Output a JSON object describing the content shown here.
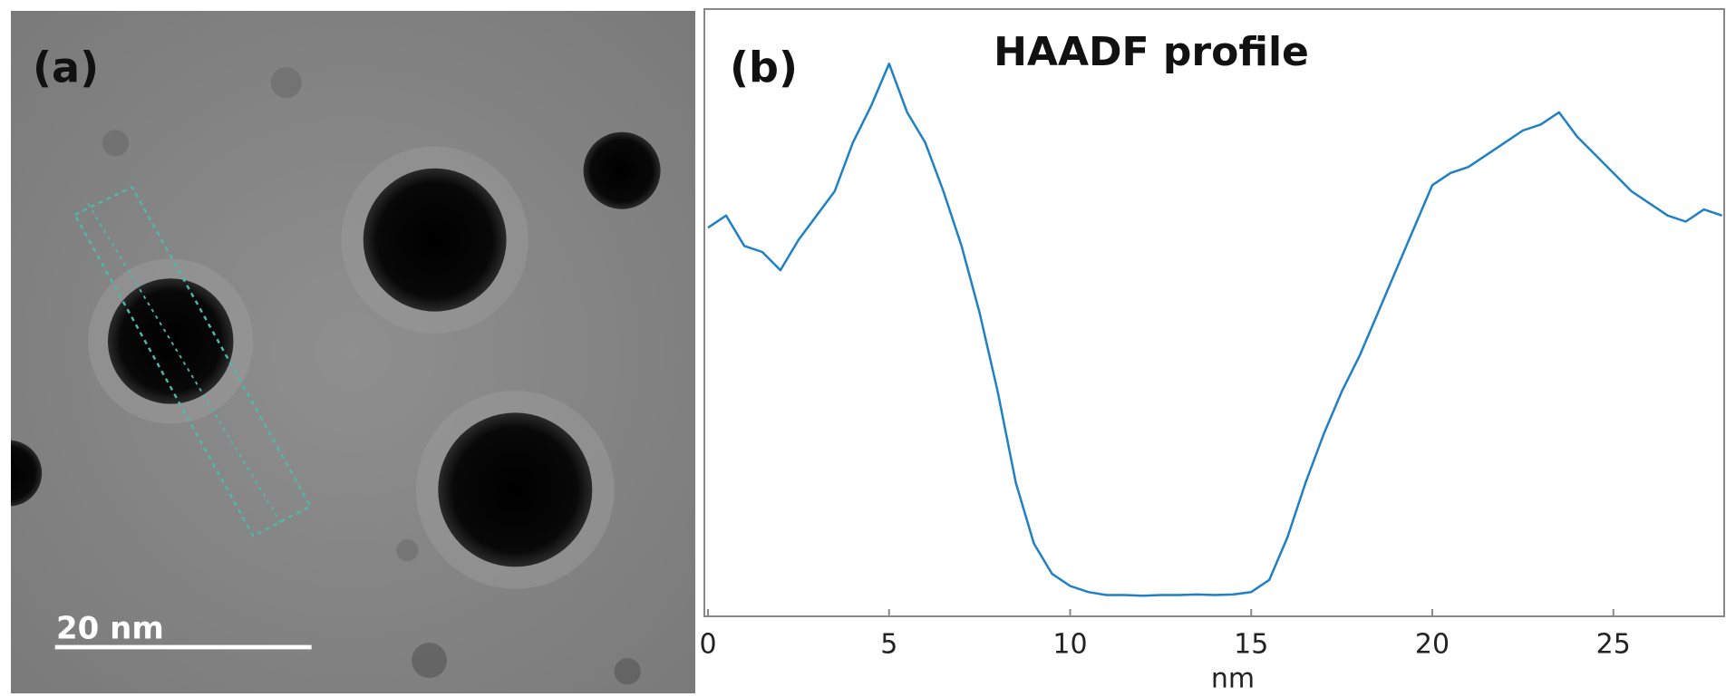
{
  "panel_a": {
    "label": "(a)",
    "scale_bar": "20 nm"
  },
  "chart_data": {
    "type": "line",
    "panel_label": "(b)",
    "title": "HAADF profile",
    "x_label": "nm",
    "x": [
      0,
      0.5,
      1,
      1.5,
      2,
      2.5,
      3,
      3.5,
      4,
      4.5,
      5,
      5.5,
      6,
      6.5,
      7,
      7.5,
      8,
      8.5,
      9,
      9.5,
      10,
      10.5,
      11,
      11.5,
      12,
      12.5,
      13,
      13.5,
      14,
      14.5,
      15,
      15.5,
      16,
      16.5,
      17,
      17.5,
      18,
      18.5,
      19,
      19.5,
      20,
      20.5,
      21,
      21.5,
      22,
      22.5,
      23,
      23.5,
      24,
      24.5,
      25,
      25.5,
      26,
      26.5,
      27,
      27.5,
      28
    ],
    "values": [
      64,
      66,
      61,
      60,
      57,
      62,
      66,
      70,
      78,
      84,
      91,
      83,
      78,
      70,
      61,
      50,
      37,
      22,
      12,
      7,
      5,
      4,
      3.5,
      3.5,
      3.4,
      3.5,
      3.5,
      3.6,
      3.5,
      3.6,
      4,
      6,
      13,
      22,
      30,
      37,
      43,
      50,
      57,
      64,
      71,
      73,
      74,
      76,
      78,
      80,
      81,
      83,
      79,
      76,
      73,
      70,
      68,
      66,
      65,
      67,
      66
    ],
    "color": "#1f80c4",
    "xlim": [
      0,
      28.1
    ],
    "xticks": [
      0,
      5,
      10,
      15,
      20,
      25
    ],
    "ylim": [
      0,
      100
    ]
  }
}
